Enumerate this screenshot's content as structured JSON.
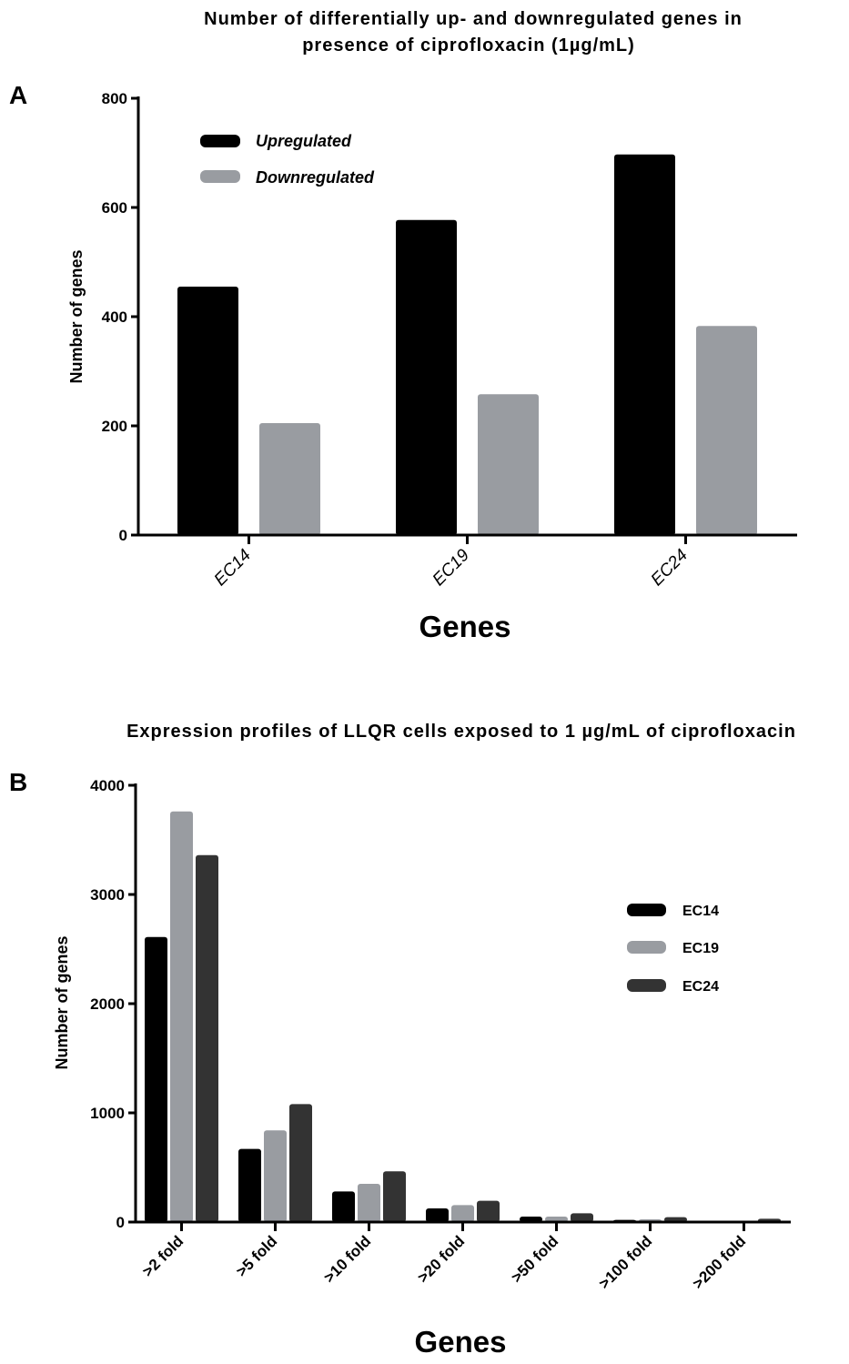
{
  "chart_data": [
    {
      "type": "bar",
      "panel_label": "A",
      "title_lines": [
        "Number of differentially up- and downregulated genes in",
        "presence of ciprofloxacin (1µg/mL)"
      ],
      "xlabel": "Genes",
      "ylabel": "Number of genes",
      "ylim": [
        0,
        800
      ],
      "yticks": [
        0,
        200,
        400,
        600,
        800
      ],
      "categories": [
        "EC14",
        "EC19",
        "EC24"
      ],
      "series": [
        {
          "name": "Upregulated",
          "color": "#000000",
          "values": [
            455,
            577,
            697
          ]
        },
        {
          "name": "Downregulated",
          "color": "#999ca1",
          "values": [
            205,
            258,
            383
          ]
        }
      ],
      "legend_position": "top-left",
      "grid": false
    },
    {
      "type": "bar",
      "panel_label": "B",
      "title_lines": [
        "Expression profiles of LLQR cells exposed to 1 µg/mL of ciprofloxacin"
      ],
      "xlabel": "Genes",
      "ylabel": "Number of genes",
      "ylim": [
        0,
        4000
      ],
      "yticks": [
        0,
        1000,
        2000,
        3000,
        4000
      ],
      "categories": [
        ">2 fold",
        ">5 fold",
        ">10 fold",
        ">20 fold",
        ">50 fold",
        ">100 fold",
        ">200 fold"
      ],
      "series": [
        {
          "name": "EC14",
          "color": "#000000",
          "values": [
            2610,
            670,
            280,
            125,
            50,
            20,
            5
          ]
        },
        {
          "name": "EC19",
          "color": "#999ca1",
          "values": [
            3760,
            840,
            350,
            155,
            50,
            25,
            5
          ]
        },
        {
          "name": "EC24",
          "color": "#333333",
          "values": [
            3360,
            1080,
            465,
            195,
            80,
            45,
            30
          ]
        }
      ],
      "legend_position": "right",
      "grid": false
    }
  ]
}
